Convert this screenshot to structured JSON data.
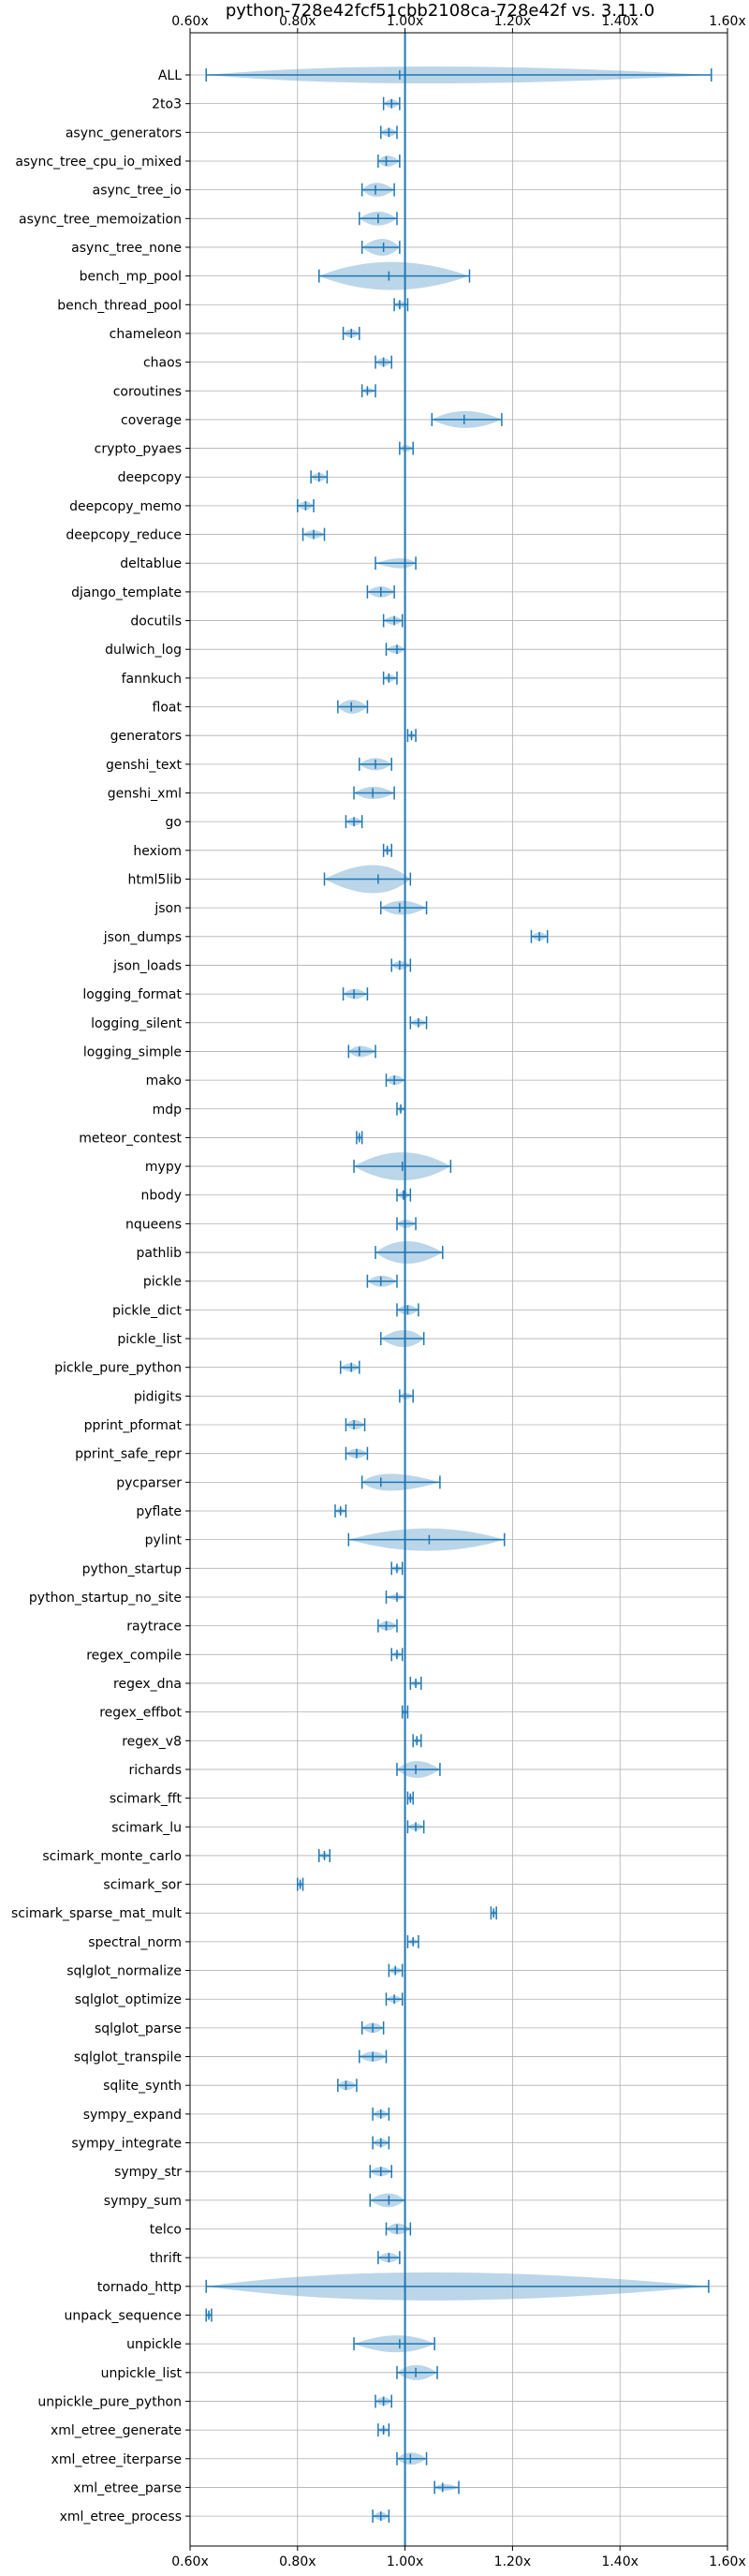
{
  "chart_data": {
    "type": "violin",
    "orientation": "horizontal",
    "title": "python-728e42fcf51cbb2108ca-728e42f vs. 3.11.0",
    "xlim": [
      0.6,
      1.6
    ],
    "xticks": [
      0.6,
      0.8,
      1.0,
      1.2,
      1.4,
      1.6
    ],
    "xtick_labels": [
      "0.60x",
      "0.80x",
      "1.00x",
      "1.20x",
      "1.40x",
      "1.60x"
    ],
    "ticks_top_and_bottom": true,
    "reference_line": 1.0,
    "grid": true,
    "benchmarks": [
      {
        "name": "ALL",
        "min": 0.63,
        "max": 1.57,
        "center": 0.99,
        "width": 0.03
      },
      {
        "name": "2to3",
        "min": 0.96,
        "max": 0.99,
        "center": 0.975,
        "width": 0.015
      },
      {
        "name": "async_generators",
        "min": 0.955,
        "max": 0.985,
        "center": 0.97,
        "width": 0.015
      },
      {
        "name": "async_tree_cpu_io_mixed",
        "min": 0.95,
        "max": 0.99,
        "center": 0.965,
        "width": 0.02
      },
      {
        "name": "async_tree_io",
        "min": 0.92,
        "max": 0.98,
        "center": 0.945,
        "width": 0.025
      },
      {
        "name": "async_tree_memoization",
        "min": 0.915,
        "max": 0.985,
        "center": 0.95,
        "width": 0.025
      },
      {
        "name": "async_tree_none",
        "min": 0.92,
        "max": 0.99,
        "center": 0.96,
        "width": 0.03
      },
      {
        "name": "bench_mp_pool",
        "min": 0.84,
        "max": 1.12,
        "center": 0.97,
        "width": 0.09
      },
      {
        "name": "bench_thread_pool",
        "min": 0.98,
        "max": 1.005,
        "center": 0.99,
        "width": 0.012
      },
      {
        "name": "chameleon",
        "min": 0.885,
        "max": 0.915,
        "center": 0.9,
        "width": 0.015
      },
      {
        "name": "chaos",
        "min": 0.945,
        "max": 0.975,
        "center": 0.96,
        "width": 0.015
      },
      {
        "name": "coroutines",
        "min": 0.92,
        "max": 0.945,
        "center": 0.93,
        "width": 0.01
      },
      {
        "name": "coverage",
        "min": 1.05,
        "max": 1.18,
        "center": 1.11,
        "width": 0.03
      },
      {
        "name": "crypto_pyaes",
        "min": 0.99,
        "max": 1.015,
        "center": 1.0,
        "width": 0.012
      },
      {
        "name": "deepcopy",
        "min": 0.825,
        "max": 0.855,
        "center": 0.84,
        "width": 0.015
      },
      {
        "name": "deepcopy_memo",
        "min": 0.8,
        "max": 0.83,
        "center": 0.815,
        "width": 0.015
      },
      {
        "name": "deepcopy_reduce",
        "min": 0.81,
        "max": 0.85,
        "center": 0.83,
        "width": 0.015
      },
      {
        "name": "deltablue",
        "min": 0.945,
        "max": 1.02,
        "center": 1.0,
        "width": 0.018
      },
      {
        "name": "django_template",
        "min": 0.93,
        "max": 0.98,
        "center": 0.955,
        "width": 0.02
      },
      {
        "name": "docutils",
        "min": 0.96,
        "max": 0.995,
        "center": 0.98,
        "width": 0.015
      },
      {
        "name": "dulwich_log",
        "min": 0.965,
        "max": 1.0,
        "center": 0.985,
        "width": 0.015
      },
      {
        "name": "fannkuch",
        "min": 0.96,
        "max": 0.985,
        "center": 0.97,
        "width": 0.012
      },
      {
        "name": "float",
        "min": 0.875,
        "max": 0.93,
        "center": 0.9,
        "width": 0.025
      },
      {
        "name": "generators",
        "min": 1.005,
        "max": 1.02,
        "center": 1.012,
        "width": 0.008
      },
      {
        "name": "genshi_text",
        "min": 0.915,
        "max": 0.975,
        "center": 0.945,
        "width": 0.022
      },
      {
        "name": "genshi_xml",
        "min": 0.905,
        "max": 0.98,
        "center": 0.94,
        "width": 0.022
      },
      {
        "name": "go",
        "min": 0.89,
        "max": 0.92,
        "center": 0.905,
        "width": 0.015
      },
      {
        "name": "hexiom",
        "min": 0.96,
        "max": 0.975,
        "center": 0.967,
        "width": 0.008
      },
      {
        "name": "html5lib",
        "min": 0.85,
        "max": 1.01,
        "center": 0.95,
        "width": 0.06
      },
      {
        "name": "json",
        "min": 0.955,
        "max": 1.04,
        "center": 0.99,
        "width": 0.025
      },
      {
        "name": "json_dumps",
        "min": 1.235,
        "max": 1.265,
        "center": 1.25,
        "width": 0.015
      },
      {
        "name": "json_loads",
        "min": 0.975,
        "max": 1.01,
        "center": 0.99,
        "width": 0.015
      },
      {
        "name": "logging_format",
        "min": 0.885,
        "max": 0.93,
        "center": 0.905,
        "width": 0.018
      },
      {
        "name": "logging_silent",
        "min": 1.01,
        "max": 1.04,
        "center": 1.025,
        "width": 0.013
      },
      {
        "name": "logging_simple",
        "min": 0.895,
        "max": 0.945,
        "center": 0.915,
        "width": 0.02
      },
      {
        "name": "mako",
        "min": 0.965,
        "max": 1.0,
        "center": 0.98,
        "width": 0.017
      },
      {
        "name": "mdp",
        "min": 0.985,
        "max": 1.0,
        "center": 0.992,
        "width": 0.01
      },
      {
        "name": "meteor_contest",
        "min": 0.91,
        "max": 0.92,
        "center": 0.915,
        "width": 0.006
      },
      {
        "name": "mypy",
        "min": 0.905,
        "max": 1.085,
        "center": 0.995,
        "width": 0.06
      },
      {
        "name": "nbody",
        "min": 0.985,
        "max": 1.01,
        "center": 0.997,
        "width": 0.012
      },
      {
        "name": "nqueens",
        "min": 0.985,
        "max": 1.02,
        "center": 1.0,
        "width": 0.015
      },
      {
        "name": "pathlib",
        "min": 0.945,
        "max": 1.07,
        "center": 1.0,
        "width": 0.04
      },
      {
        "name": "pickle",
        "min": 0.93,
        "max": 0.985,
        "center": 0.955,
        "width": 0.02
      },
      {
        "name": "pickle_dict",
        "min": 0.985,
        "max": 1.025,
        "center": 1.005,
        "width": 0.018
      },
      {
        "name": "pickle_list",
        "min": 0.955,
        "max": 1.035,
        "center": 1.0,
        "width": 0.03
      },
      {
        "name": "pickle_pure_python",
        "min": 0.88,
        "max": 0.915,
        "center": 0.9,
        "width": 0.015
      },
      {
        "name": "pidigits",
        "min": 0.99,
        "max": 1.015,
        "center": 1.0,
        "width": 0.012
      },
      {
        "name": "pprint_pformat",
        "min": 0.89,
        "max": 0.925,
        "center": 0.905,
        "width": 0.017
      },
      {
        "name": "pprint_safe_repr",
        "min": 0.89,
        "max": 0.93,
        "center": 0.91,
        "width": 0.017
      },
      {
        "name": "pycparser",
        "min": 0.92,
        "max": 1.065,
        "center": 0.955,
        "width": 0.03
      },
      {
        "name": "pyflate",
        "min": 0.87,
        "max": 0.89,
        "center": 0.88,
        "width": 0.01
      },
      {
        "name": "pylint",
        "min": 0.895,
        "max": 1.185,
        "center": 1.045,
        "width": 0.04
      },
      {
        "name": "python_startup",
        "min": 0.975,
        "max": 0.995,
        "center": 0.985,
        "width": 0.008
      },
      {
        "name": "python_startup_no_site",
        "min": 0.965,
        "max": 1.0,
        "center": 0.985,
        "width": 0.01
      },
      {
        "name": "raytrace",
        "min": 0.95,
        "max": 0.985,
        "center": 0.965,
        "width": 0.017
      },
      {
        "name": "regex_compile",
        "min": 0.975,
        "max": 0.995,
        "center": 0.985,
        "width": 0.01
      },
      {
        "name": "regex_dna",
        "min": 1.01,
        "max": 1.03,
        "center": 1.02,
        "width": 0.01
      },
      {
        "name": "regex_effbot",
        "min": 0.995,
        "max": 1.005,
        "center": 1.0,
        "width": 0.006
      },
      {
        "name": "regex_v8",
        "min": 1.015,
        "max": 1.03,
        "center": 1.022,
        "width": 0.008
      },
      {
        "name": "richards",
        "min": 0.985,
        "max": 1.065,
        "center": 1.02,
        "width": 0.03
      },
      {
        "name": "scimark_fft",
        "min": 1.005,
        "max": 1.015,
        "center": 1.01,
        "width": 0.006
      },
      {
        "name": "scimark_lu",
        "min": 1.005,
        "max": 1.035,
        "center": 1.02,
        "width": 0.013
      },
      {
        "name": "scimark_monte_carlo",
        "min": 0.84,
        "max": 0.86,
        "center": 0.85,
        "width": 0.01
      },
      {
        "name": "scimark_sor",
        "min": 0.8,
        "max": 0.81,
        "center": 0.805,
        "width": 0.006
      },
      {
        "name": "scimark_sparse_mat_mult",
        "min": 1.16,
        "max": 1.17,
        "center": 1.165,
        "width": 0.006
      },
      {
        "name": "spectral_norm",
        "min": 1.005,
        "max": 1.025,
        "center": 1.015,
        "width": 0.01
      },
      {
        "name": "sqlglot_normalize",
        "min": 0.97,
        "max": 0.995,
        "center": 0.982,
        "width": 0.012
      },
      {
        "name": "sqlglot_optimize",
        "min": 0.965,
        "max": 0.995,
        "center": 0.98,
        "width": 0.013
      },
      {
        "name": "sqlglot_parse",
        "min": 0.92,
        "max": 0.96,
        "center": 0.94,
        "width": 0.018
      },
      {
        "name": "sqlglot_transpile",
        "min": 0.915,
        "max": 0.965,
        "center": 0.94,
        "width": 0.018
      },
      {
        "name": "sqlite_synth",
        "min": 0.875,
        "max": 0.91,
        "center": 0.89,
        "width": 0.017
      },
      {
        "name": "sympy_expand",
        "min": 0.94,
        "max": 0.97,
        "center": 0.955,
        "width": 0.015
      },
      {
        "name": "sympy_integrate",
        "min": 0.94,
        "max": 0.97,
        "center": 0.955,
        "width": 0.015
      },
      {
        "name": "sympy_str",
        "min": 0.935,
        "max": 0.975,
        "center": 0.955,
        "width": 0.017
      },
      {
        "name": "sympy_sum",
        "min": 0.935,
        "max": 1.0,
        "center": 0.97,
        "width": 0.025
      },
      {
        "name": "telco",
        "min": 0.965,
        "max": 1.01,
        "center": 0.985,
        "width": 0.02
      },
      {
        "name": "thrift",
        "min": 0.95,
        "max": 0.99,
        "center": 0.97,
        "width": 0.017
      },
      {
        "name": "tornado_http",
        "min": 0.63,
        "max": 1.565,
        "center": 1.0,
        "width": 0.075
      },
      {
        "name": "unpack_sequence",
        "min": 0.63,
        "max": 0.64,
        "center": 0.635,
        "width": 0.006
      },
      {
        "name": "unpickle",
        "min": 0.905,
        "max": 1.055,
        "center": 0.99,
        "width": 0.03
      },
      {
        "name": "unpickle_list",
        "min": 0.985,
        "max": 1.06,
        "center": 1.02,
        "width": 0.027
      },
      {
        "name": "unpickle_pure_python",
        "min": 0.945,
        "max": 0.975,
        "center": 0.96,
        "width": 0.015
      },
      {
        "name": "xml_etree_generate",
        "min": 0.95,
        "max": 0.97,
        "center": 0.96,
        "width": 0.01
      },
      {
        "name": "xml_etree_iterparse",
        "min": 0.985,
        "max": 1.04,
        "center": 1.01,
        "width": 0.022
      },
      {
        "name": "xml_etree_parse",
        "min": 1.055,
        "max": 1.1,
        "center": 1.07,
        "width": 0.012
      },
      {
        "name": "xml_etree_process",
        "min": 0.94,
        "max": 0.97,
        "center": 0.955,
        "width": 0.015
      }
    ]
  }
}
